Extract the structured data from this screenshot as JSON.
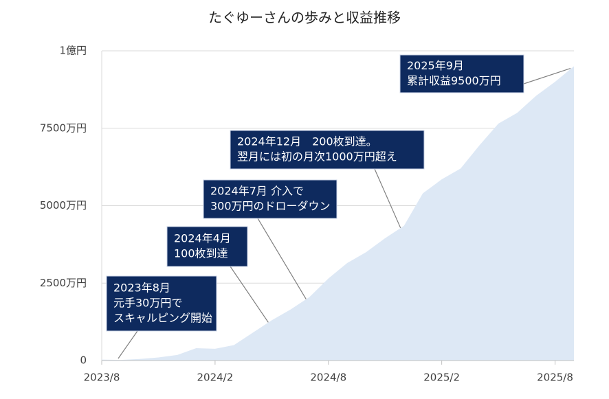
{
  "chart_data": {
    "type": "area",
    "title": "たぐゆーさんの歩みと収益推移",
    "categories": [
      "2023/8",
      null,
      null,
      null,
      null,
      null,
      "2024/2",
      null,
      null,
      null,
      null,
      null,
      "2024/8",
      null,
      null,
      null,
      null,
      null,
      "2025/2",
      null,
      null,
      null,
      null,
      null,
      "2025/8",
      null
    ],
    "values": [
      30,
      20,
      50,
      100,
      180,
      400,
      380,
      500,
      900,
      1300,
      1650,
      2050,
      2650,
      3150,
      3500,
      3950,
      4350,
      5400,
      5850,
      6200,
      6950,
      7650,
      8000,
      8550,
      9000,
      9500
    ],
    "color": "#dde8f5",
    "ylim": [
      0,
      10000
    ],
    "yticks": [
      0,
      {
        "value": 2500,
        "label": "2500万円"
      },
      {
        "value": 5000,
        "label": "5000万円"
      },
      {
        "value": 7500,
        "label": "7500万円"
      },
      {
        "value": 10000,
        "label": "1億円"
      }
    ],
    "grid": true,
    "annotations": [
      {
        "lines": [
          "2023年8月",
          "元手30万円で",
          "スキャルピング開始"
        ]
      },
      {
        "lines": [
          "2024年4月",
          "100枚到達"
        ]
      },
      {
        "lines": [
          "2024年7月 介入で",
          "300万円のドローダウン"
        ]
      },
      {
        "lines": [
          "2024年12月　200枚到達。",
          "翌月には初の月次1000万円超え"
        ]
      },
      {
        "lines": [
          "2025年9月",
          "累計収益9500万円"
        ]
      }
    ]
  }
}
